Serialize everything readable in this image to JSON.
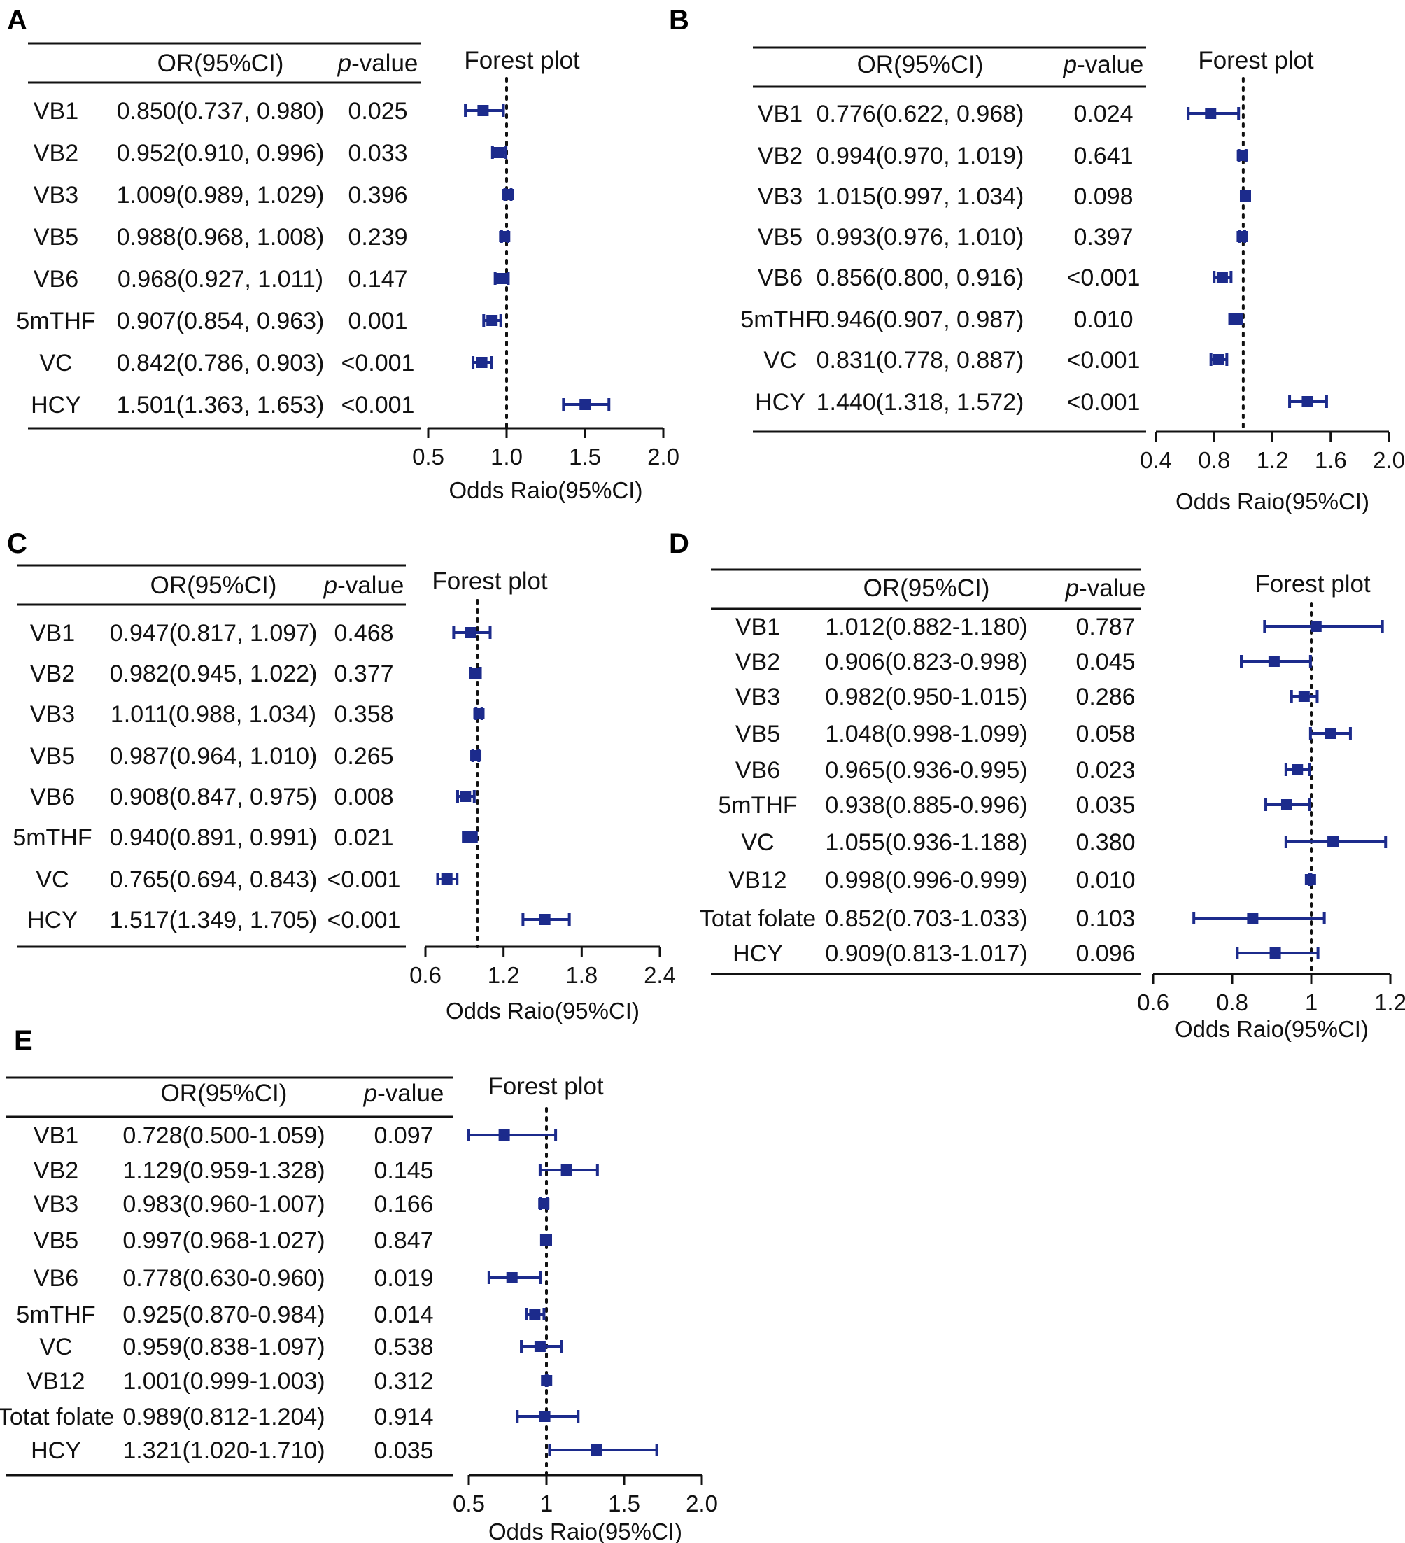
{
  "headers": {
    "or": "OR(95%CI)",
    "p_italic": "p",
    "p_rest": "-value",
    "forest": "Forest plot"
  },
  "colors": {
    "marker": "#1c2b8c",
    "text": "#111111"
  },
  "chart_data": [
    {
      "panel": "A",
      "type": "forest",
      "title": "Forest plot",
      "xlabel": "Odds Raio(95%CI)",
      "xlim": [
        0.5,
        2.0
      ],
      "xticks": [
        "0.5",
        "1.0",
        "1.5",
        "2.0"
      ],
      "reference": 1.0,
      "rows": [
        {
          "label": "VB1",
          "or_text": "0.850(0.737, 0.980)",
          "p": "0.025",
          "or": 0.85,
          "lo": 0.737,
          "hi": 0.98
        },
        {
          "label": "VB2",
          "or_text": "0.952(0.910, 0.996)",
          "p": "0.033",
          "or": 0.952,
          "lo": 0.91,
          "hi": 0.996
        },
        {
          "label": "VB3",
          "or_text": "1.009(0.989, 1.029)",
          "p": "0.396",
          "or": 1.009,
          "lo": 0.989,
          "hi": 1.029
        },
        {
          "label": "VB5",
          "or_text": "0.988(0.968, 1.008)",
          "p": "0.239",
          "or": 0.988,
          "lo": 0.968,
          "hi": 1.008
        },
        {
          "label": "VB6",
          "or_text": "0.968(0.927, 1.011)",
          "p": "0.147",
          "or": 0.968,
          "lo": 0.927,
          "hi": 1.011
        },
        {
          "label": "5mTHF",
          "or_text": "0.907(0.854, 0.963)",
          "p": "0.001",
          "or": 0.907,
          "lo": 0.854,
          "hi": 0.963
        },
        {
          "label": "VC",
          "or_text": "0.842(0.786, 0.903)",
          "p": "<0.001",
          "or": 0.842,
          "lo": 0.786,
          "hi": 0.903
        },
        {
          "label": "HCY",
          "or_text": "1.501(1.363, 1.653)",
          "p": "<0.001",
          "or": 1.501,
          "lo": 1.363,
          "hi": 1.653
        }
      ]
    },
    {
      "panel": "B",
      "type": "forest",
      "title": "Forest plot",
      "xlabel": "Odds Raio(95%CI)",
      "xlim": [
        0.4,
        2.0
      ],
      "xticks": [
        "0.4",
        "0.8",
        "1.2",
        "1.6",
        "2.0"
      ],
      "reference": 1.0,
      "rows": [
        {
          "label": "VB1",
          "or_text": "0.776(0.622, 0.968)",
          "p": "0.024",
          "or": 0.776,
          "lo": 0.622,
          "hi": 0.968
        },
        {
          "label": "VB2",
          "or_text": "0.994(0.970, 1.019)",
          "p": "0.641",
          "or": 0.994,
          "lo": 0.97,
          "hi": 1.019
        },
        {
          "label": "VB3",
          "or_text": "1.015(0.997, 1.034)",
          "p": "0.098",
          "or": 1.015,
          "lo": 0.997,
          "hi": 1.034
        },
        {
          "label": "VB5",
          "or_text": "0.993(0.976, 1.010)",
          "p": "0.397",
          "or": 0.993,
          "lo": 0.976,
          "hi": 1.01
        },
        {
          "label": "VB6",
          "or_text": "0.856(0.800, 0.916)",
          "p": "<0.001",
          "or": 0.856,
          "lo": 0.8,
          "hi": 0.916
        },
        {
          "label": "5mTHF",
          "or_text": "0.946(0.907, 0.987)",
          "p": "0.010",
          "or": 0.946,
          "lo": 0.907,
          "hi": 0.987
        },
        {
          "label": "VC",
          "or_text": "0.831(0.778, 0.887)",
          "p": "<0.001",
          "or": 0.831,
          "lo": 0.778,
          "hi": 0.887
        },
        {
          "label": "HCY",
          "or_text": "1.440(1.318, 1.572)",
          "p": "<0.001",
          "or": 1.44,
          "lo": 1.318,
          "hi": 1.572
        }
      ]
    },
    {
      "panel": "C",
      "type": "forest",
      "title": "Forest plot",
      "xlabel": "Odds Raio(95%CI)",
      "xlim": [
        0.6,
        2.4
      ],
      "xticks": [
        "0.6",
        "1.2",
        "1.8",
        "2.4"
      ],
      "reference": 1.0,
      "rows": [
        {
          "label": "VB1",
          "or_text": "0.947(0.817, 1.097)",
          "p": "0.468",
          "or": 0.947,
          "lo": 0.817,
          "hi": 1.097
        },
        {
          "label": "VB2",
          "or_text": "0.982(0.945, 1.022)",
          "p": "0.377",
          "or": 0.982,
          "lo": 0.945,
          "hi": 1.022
        },
        {
          "label": "VB3",
          "or_text": "1.011(0.988, 1.034)",
          "p": "0.358",
          "or": 1.011,
          "lo": 0.988,
          "hi": 1.034
        },
        {
          "label": "VB5",
          "or_text": "0.987(0.964, 1.010)",
          "p": "0.265",
          "or": 0.987,
          "lo": 0.964,
          "hi": 1.01
        },
        {
          "label": "VB6",
          "or_text": "0.908(0.847, 0.975)",
          "p": "0.008",
          "or": 0.908,
          "lo": 0.847,
          "hi": 0.975
        },
        {
          "label": "5mTHF",
          "or_text": "0.940(0.891, 0.991)",
          "p": "0.021",
          "or": 0.94,
          "lo": 0.891,
          "hi": 0.991
        },
        {
          "label": "VC",
          "or_text": "0.765(0.694, 0.843)",
          "p": "<0.001",
          "or": 0.765,
          "lo": 0.694,
          "hi": 0.843
        },
        {
          "label": "HCY",
          "or_text": "1.517(1.349, 1.705)",
          "p": "<0.001",
          "or": 1.517,
          "lo": 1.349,
          "hi": 1.705
        }
      ]
    },
    {
      "panel": "D",
      "type": "forest",
      "title": "Forest plot",
      "xlabel": "Odds Raio(95%CI)",
      "xlim": [
        0.6,
        1.2
      ],
      "xticks": [
        "0.6",
        "0.8",
        "1",
        "1.2"
      ],
      "reference": 1.0,
      "rows": [
        {
          "label": "VB1",
          "or_text": "1.012(0.882-1.180)",
          "p": "0.787",
          "or": 1.012,
          "lo": 0.882,
          "hi": 1.18
        },
        {
          "label": "VB2",
          "or_text": "0.906(0.823-0.998)",
          "p": "0.045",
          "or": 0.906,
          "lo": 0.823,
          "hi": 0.998
        },
        {
          "label": "VB3",
          "or_text": "0.982(0.950-1.015)",
          "p": "0.286",
          "or": 0.982,
          "lo": 0.95,
          "hi": 1.015
        },
        {
          "label": "VB5",
          "or_text": "1.048(0.998-1.099)",
          "p": "0.058",
          "or": 1.048,
          "lo": 0.998,
          "hi": 1.099
        },
        {
          "label": "VB6",
          "or_text": "0.965(0.936-0.995)",
          "p": "0.023",
          "or": 0.965,
          "lo": 0.936,
          "hi": 0.995
        },
        {
          "label": "5mTHF",
          "or_text": "0.938(0.885-0.996)",
          "p": "0.035",
          "or": 0.938,
          "lo": 0.885,
          "hi": 0.996
        },
        {
          "label": "VC",
          "or_text": "1.055(0.936-1.188)",
          "p": "0.380",
          "or": 1.055,
          "lo": 0.936,
          "hi": 1.188
        },
        {
          "label": "VB12",
          "or_text": "0.998(0.996-0.999)",
          "p": "0.010",
          "or": 0.998,
          "lo": 0.996,
          "hi": 0.999
        },
        {
          "label": "Totat folate",
          "or_text": "0.852(0.703-1.033)",
          "p": "0.103",
          "or": 0.852,
          "lo": 0.703,
          "hi": 1.033
        },
        {
          "label": "HCY",
          "or_text": "0.909(0.813-1.017)",
          "p": "0.096",
          "or": 0.909,
          "lo": 0.813,
          "hi": 1.017
        }
      ]
    },
    {
      "panel": "E",
      "type": "forest",
      "title": "Forest plot",
      "xlabel": "Odds Raio(95%CI)",
      "xlim": [
        0.5,
        2.0
      ],
      "xticks": [
        "0.5",
        "1",
        "1.5",
        "2.0"
      ],
      "reference": 1.0,
      "rows": [
        {
          "label": "VB1",
          "or_text": "0.728(0.500-1.059)",
          "p": "0.097",
          "or": 0.728,
          "lo": 0.5,
          "hi": 1.059
        },
        {
          "label": "VB2",
          "or_text": "1.129(0.959-1.328)",
          "p": "0.145",
          "or": 1.129,
          "lo": 0.959,
          "hi": 1.328
        },
        {
          "label": "VB3",
          "or_text": "0.983(0.960-1.007)",
          "p": "0.166",
          "or": 0.983,
          "lo": 0.96,
          "hi": 1.007
        },
        {
          "label": "VB5",
          "or_text": "0.997(0.968-1.027)",
          "p": "0.847",
          "or": 0.997,
          "lo": 0.968,
          "hi": 1.027
        },
        {
          "label": "VB6",
          "or_text": "0.778(0.630-0.960)",
          "p": "0.019",
          "or": 0.778,
          "lo": 0.63,
          "hi": 0.96
        },
        {
          "label": "5mTHF",
          "or_text": "0.925(0.870-0.984)",
          "p": "0.014",
          "or": 0.925,
          "lo": 0.87,
          "hi": 0.984
        },
        {
          "label": "VC",
          "or_text": "0.959(0.838-1.097)",
          "p": "0.538",
          "or": 0.959,
          "lo": 0.838,
          "hi": 1.097
        },
        {
          "label": "VB12",
          "or_text": "1.001(0.999-1.003)",
          "p": "0.312",
          "or": 1.001,
          "lo": 0.999,
          "hi": 1.003
        },
        {
          "label": "Totat folate",
          "or_text": "0.989(0.812-1.204)",
          "p": "0.914",
          "or": 0.989,
          "lo": 0.812,
          "hi": 1.204
        },
        {
          "label": "HCY",
          "or_text": "1.321(1.020-1.710)",
          "p": "0.035",
          "or": 1.321,
          "lo": 1.02,
          "hi": 1.71
        }
      ]
    }
  ]
}
